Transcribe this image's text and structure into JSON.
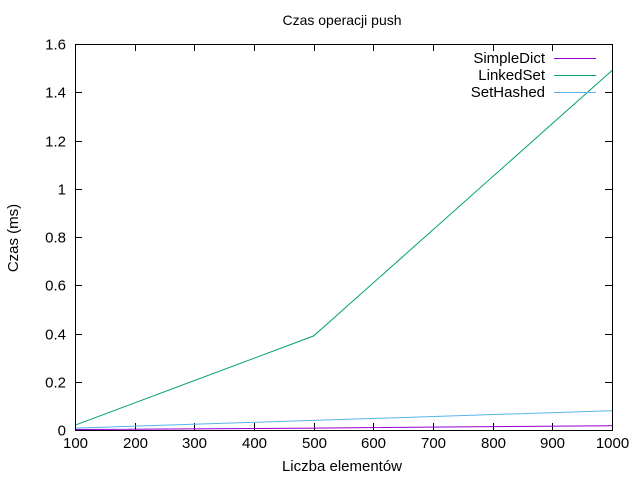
{
  "chart_data": {
    "type": "line",
    "title": "Czas operacji push",
    "xlabel": "Liczba elementów",
    "ylabel": "Czas (ms)",
    "xlim": [
      100,
      1000
    ],
    "ylim": [
      0,
      1.6
    ],
    "xticks": [
      "100",
      "200",
      "300",
      "400",
      "500",
      "600",
      "700",
      "800",
      "900",
      "1000"
    ],
    "yticks": [
      "0",
      "0.2",
      "0.4",
      "0.6",
      "0.8",
      "1",
      "1.2",
      "1.4",
      "1.6"
    ],
    "grid": false,
    "legend_position": "top-right",
    "series": [
      {
        "name": "SimpleDict",
        "color": "#9400d3",
        "x": [
          100,
          500,
          1000
        ],
        "y": [
          0.002,
          0.008,
          0.018
        ]
      },
      {
        "name": "LinkedSet",
        "color": "#009e73",
        "x": [
          100,
          500,
          1000
        ],
        "y": [
          0.02,
          0.39,
          1.49
        ]
      },
      {
        "name": "SetHashed",
        "color": "#56b4e9",
        "x": [
          100,
          500,
          1000
        ],
        "y": [
          0.008,
          0.04,
          0.08
        ]
      }
    ]
  }
}
